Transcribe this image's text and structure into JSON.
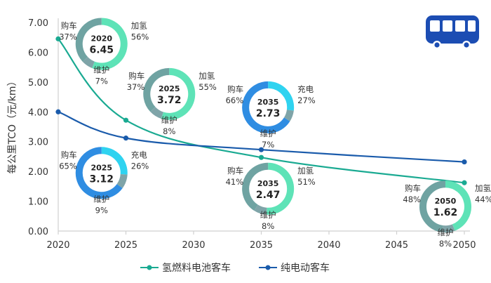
{
  "chart_data": {
    "type": "line",
    "ylabel": "每公里TCO（元/km）",
    "xlabel": "",
    "xlim": [
      2020,
      2050
    ],
    "ylim": [
      0,
      7
    ],
    "x_ticks": [
      2020,
      2025,
      2030,
      2035,
      2040,
      2045,
      2050
    ],
    "y_ticks": [
      "0.00",
      "1.00",
      "2.00",
      "3.00",
      "4.00",
      "5.00",
      "6.00",
      "7.00"
    ],
    "series": [
      {
        "name": "氢燃料电池客车",
        "color": "#1aaa92",
        "points": [
          {
            "x": 2020,
            "y": 6.45
          },
          {
            "x": 2025,
            "y": 3.72
          },
          {
            "x": 2035,
            "y": 2.47
          },
          {
            "x": 2050,
            "y": 1.62
          }
        ]
      },
      {
        "name": "纯电动客车",
        "color": "#1a5bab",
        "points": [
          {
            "x": 2020,
            "y": 4.0
          },
          {
            "x": 2025,
            "y": 3.12
          },
          {
            "x": 2035,
            "y": 2.73
          },
          {
            "x": 2050,
            "y": 2.32
          }
        ]
      }
    ],
    "donuts": [
      {
        "kind": "hydrogen",
        "year": "2020",
        "total": "6.45",
        "cx_year": 2023.2,
        "cy_val": 6.28,
        "segments": [
          {
            "label": "加氢",
            "value": 56,
            "pct": "56%"
          },
          {
            "label": "维护",
            "value": 7,
            "pct": "7%"
          },
          {
            "label": "购车",
            "value": 37,
            "pct": "37%"
          }
        ]
      },
      {
        "kind": "hydrogen",
        "year": "2025",
        "total": "3.72",
        "cx_year": 2028.2,
        "cy_val": 4.6,
        "segments": [
          {
            "label": "加氢",
            "value": 55,
            "pct": "55%"
          },
          {
            "label": "维护",
            "value": 8,
            "pct": "8%"
          },
          {
            "label": "购车",
            "value": 37,
            "pct": "37%"
          }
        ]
      },
      {
        "kind": "electric",
        "year": "2035",
        "total": "2.73",
        "cx_year": 2035.5,
        "cy_val": 4.15,
        "segments": [
          {
            "label": "充电",
            "value": 27,
            "pct": "27%"
          },
          {
            "label": "维护",
            "value": 7,
            "pct": "7%"
          },
          {
            "label": "购车",
            "value": 66,
            "pct": "66%"
          }
        ]
      },
      {
        "kind": "electric",
        "year": "2025",
        "total": "3.12",
        "cx_year": 2023.2,
        "cy_val": 1.95,
        "segments": [
          {
            "label": "充电",
            "value": 26,
            "pct": "26%"
          },
          {
            "label": "维护",
            "value": 9,
            "pct": "9%"
          },
          {
            "label": "购车",
            "value": 65,
            "pct": "65%"
          }
        ]
      },
      {
        "kind": "hydrogen",
        "year": "2035",
        "total": "2.47",
        "cx_year": 2035.5,
        "cy_val": 1.42,
        "segments": [
          {
            "label": "加氢",
            "value": 51,
            "pct": "51%"
          },
          {
            "label": "维护",
            "value": 8,
            "pct": "8%"
          },
          {
            "label": "购车",
            "value": 41,
            "pct": "41%"
          }
        ]
      },
      {
        "kind": "hydrogen",
        "year": "2050",
        "total": "1.62",
        "cx_year": 2048.6,
        "cy_val": 0.82,
        "segments": [
          {
            "label": "加氢",
            "value": 44,
            "pct": "44%"
          },
          {
            "label": "维护",
            "value": 8,
            "pct": "8%"
          },
          {
            "label": "购车",
            "value": 48,
            "pct": "48%"
          }
        ]
      }
    ]
  },
  "colors": {
    "axis": "#d0d0d0",
    "text": "#333333",
    "hydrogen_fuel": "#5ee3b7",
    "hydrogen_buy": "#6fa3a2",
    "electric_charge": "#2fd3f0",
    "electric_buy": "#2f8de2",
    "maint": "#7fa4a8",
    "bus_icon": "#1c4db3"
  },
  "icon": {
    "name": "bus-icon"
  }
}
